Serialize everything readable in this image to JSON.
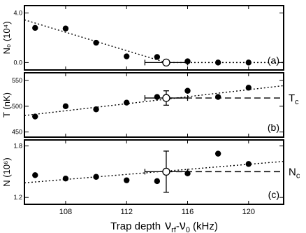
{
  "chart_data": [
    {
      "panel": "a",
      "type": "scatter",
      "panel_label": "(a)",
      "ylabel": "N₀ (10⁴)",
      "y_ticks": [
        "4.0",
        "0.0"
      ],
      "y_tick_values": [
        4.0,
        0.0
      ],
      "ylim": [
        -0.6,
        4.6
      ],
      "xlim": [
        105.3,
        122.3
      ],
      "points": [
        {
          "x": 106,
          "y": 2.8
        },
        {
          "x": 108,
          "y": 2.75
        },
        {
          "x": 110,
          "y": 1.6
        },
        {
          "x": 112,
          "y": 0.5
        },
        {
          "x": 114,
          "y": 0.45
        },
        {
          "x": 116,
          "y": 0.1
        },
        {
          "x": 118,
          "y": 0.0
        },
        {
          "x": 120,
          "y": 0.0
        }
      ],
      "highlight": {
        "x": 114.6,
        "y": 0.0,
        "xerr": 1.4
      },
      "fit_lines": [
        {
          "style": "dotted",
          "points": [
            [
              105.3,
              3.45
            ],
            [
              114.6,
              0.0
            ]
          ]
        },
        {
          "style": "dotted",
          "points": [
            [
              114.6,
              0.0
            ],
            [
              122.3,
              0.0
            ]
          ]
        }
      ],
      "side_label": ""
    },
    {
      "panel": "b",
      "type": "scatter",
      "panel_label": "(b)",
      "ylabel": "T (nK)",
      "y_ticks": [
        "550",
        "500",
        "450"
      ],
      "y_tick_values": [
        550,
        500,
        450
      ],
      "ylim": [
        440,
        565
      ],
      "xlim": [
        105.3,
        122.3
      ],
      "points": [
        {
          "x": 106,
          "y": 480
        },
        {
          "x": 108,
          "y": 500
        },
        {
          "x": 110,
          "y": 494
        },
        {
          "x": 112,
          "y": 507
        },
        {
          "x": 114,
          "y": 518
        },
        {
          "x": 116,
          "y": 530
        },
        {
          "x": 118,
          "y": 518
        },
        {
          "x": 120,
          "y": 536
        }
      ],
      "highlight": {
        "x": 114.6,
        "y": 516,
        "xerr": 1.4,
        "yerr": 14
      },
      "fit_lines": [
        {
          "style": "dotted",
          "points": [
            [
              105.3,
              482
            ],
            [
              122.3,
              540
            ]
          ]
        },
        {
          "style": "dashed",
          "points": [
            [
              114.6,
              516
            ],
            [
              122.3,
              516
            ]
          ]
        }
      ],
      "side_label": "T",
      "side_label_sub": "c"
    },
    {
      "panel": "c",
      "type": "scatter",
      "panel_label": "(c)",
      "ylabel": "N (10⁶)",
      "y_ticks": [
        "1.8",
        "1.2"
      ],
      "y_tick_values": [
        1.8,
        1.2
      ],
      "ylim": [
        1.12,
        1.87
      ],
      "xlim": [
        105.3,
        122.3
      ],
      "x_ticks": [
        "108",
        "112",
        "116",
        "120"
      ],
      "x_tick_values": [
        108,
        112,
        116,
        120
      ],
      "points": [
        {
          "x": 106,
          "y": 1.46
        },
        {
          "x": 108,
          "y": 1.42
        },
        {
          "x": 110,
          "y": 1.44
        },
        {
          "x": 112,
          "y": 1.4
        },
        {
          "x": 114,
          "y": 1.39
        },
        {
          "x": 116,
          "y": 1.48
        },
        {
          "x": 118,
          "y": 1.71
        },
        {
          "x": 120,
          "y": 1.59
        }
      ],
      "highlight": {
        "x": 114.6,
        "y": 1.5,
        "xerr": 1.4,
        "yerr": 0.24
      },
      "fit_lines": [
        {
          "style": "dotted",
          "points": [
            [
              105.3,
              1.37
            ],
            [
              122.3,
              1.62
            ]
          ]
        },
        {
          "style": "dashed",
          "points": [
            [
              114.6,
              1.5
            ],
            [
              122.3,
              1.5
            ]
          ]
        }
      ],
      "side_label": "N",
      "side_label_sub": "c"
    }
  ],
  "xlabel": {
    "main": "Trap depth",
    "symbol": "ν",
    "sub1": "rf",
    "sep": "-",
    "sub2": "0",
    "unit": "(kHz)"
  }
}
